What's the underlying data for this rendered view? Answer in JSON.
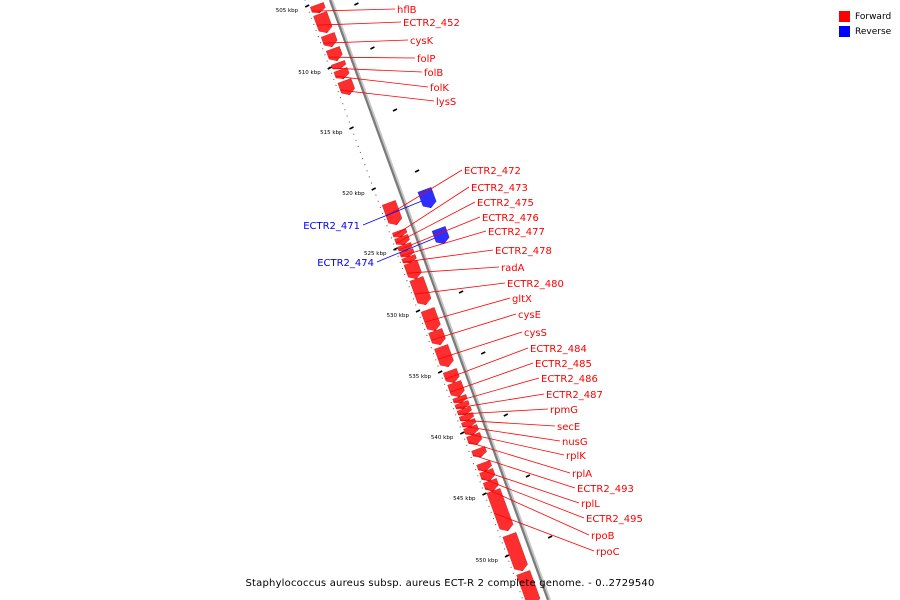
{
  "legend": [
    {
      "label": "Forward",
      "color": "#ff0000"
    },
    {
      "label": "Reverse",
      "color": "#0000ff"
    }
  ],
  "caption": "Staphylococcus aureus subsp. aureus ECT-R 2 complete genome. - 0..2729540",
  "ticks": [
    "505 kbp",
    "510 kbp",
    "515 kbp",
    "520 kbp",
    "525 kbp",
    "530 kbp",
    "535 kbp",
    "540 kbp",
    "545 kbp",
    "550 kbp"
  ],
  "forward_genes": [
    "hflB",
    "ECTR2_452",
    "cysK",
    "folP",
    "folB",
    "folK",
    "lysS",
    "ECTR2_472",
    "ECTR2_473",
    "ECTR2_475",
    "ECTR2_476",
    "ECTR2_477",
    "ECTR2_478",
    "radA",
    "ECTR2_480",
    "gltX",
    "cysE",
    "cysS",
    "ECTR2_484",
    "ECTR2_485",
    "ECTR2_486",
    "ECTR2_487",
    "rpmG",
    "secE",
    "nusG",
    "rplK",
    "rplA",
    "ECTR2_493",
    "rplL",
    "ECTR2_495",
    "rpoB",
    "rpoC"
  ],
  "reverse_genes": [
    "ECTR2_471",
    "ECTR2_474"
  ]
}
